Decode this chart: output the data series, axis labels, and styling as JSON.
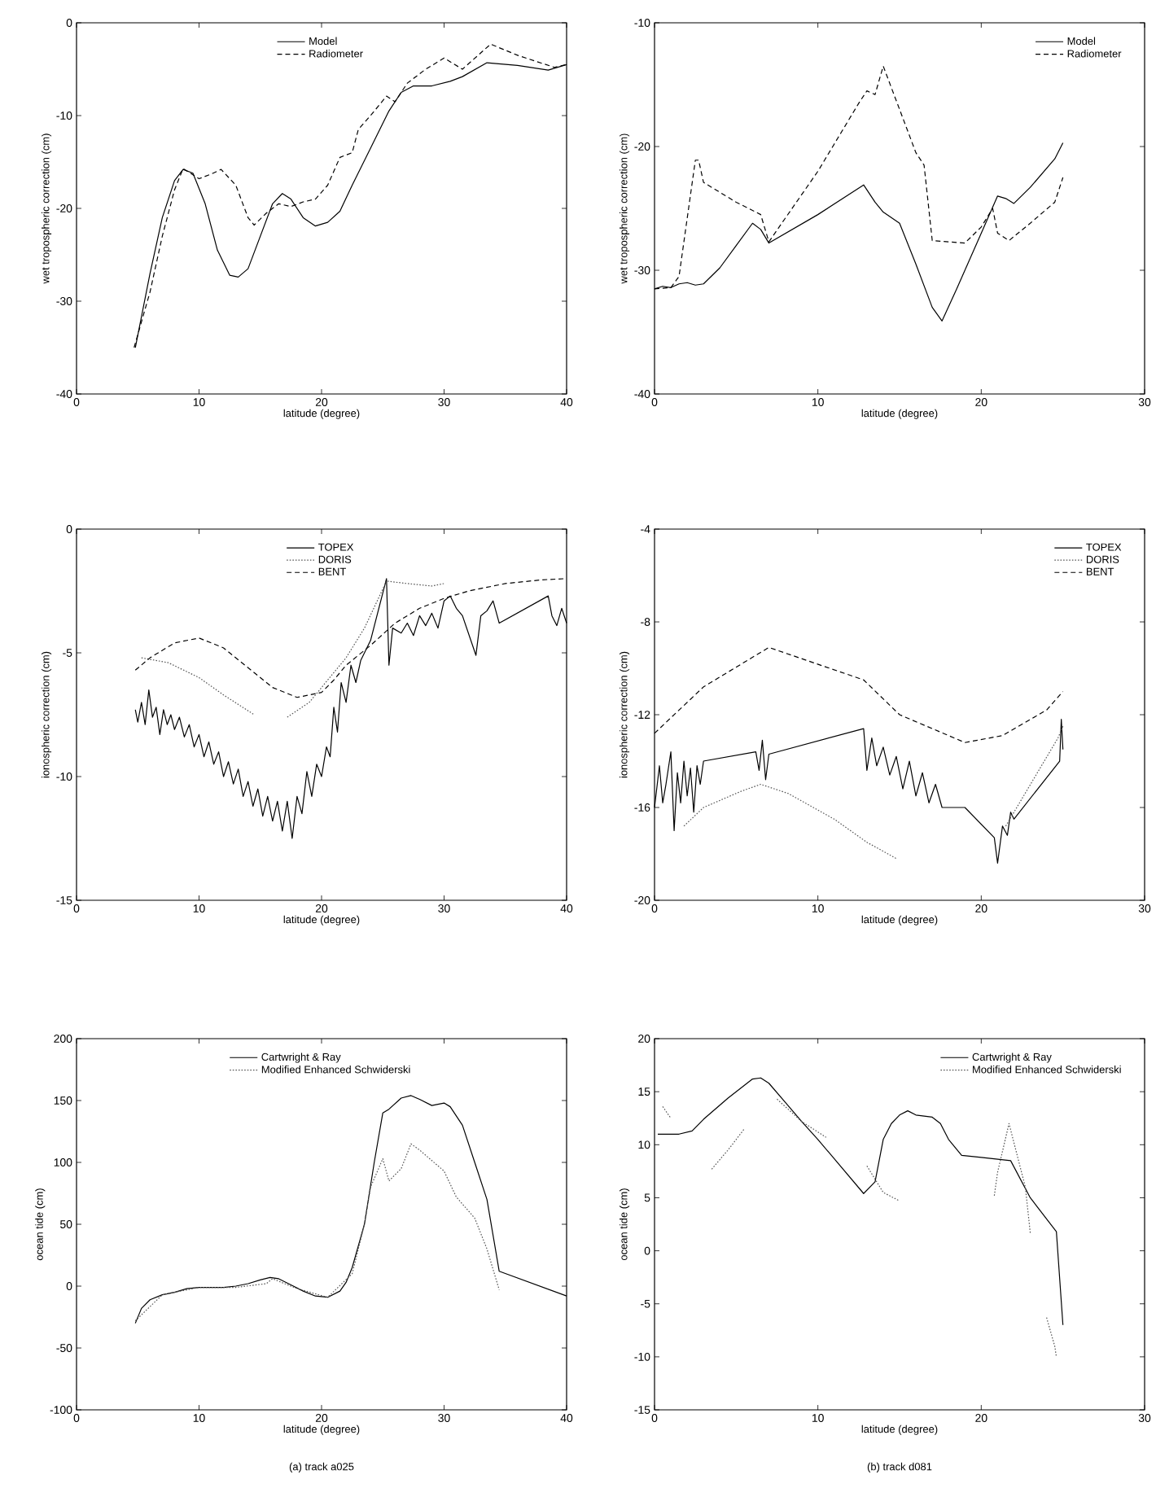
{
  "chart_data": [
    {
      "type": "line",
      "xlabel": "latitude (degree)",
      "ylabel": "wet tropospheric correction (cm)",
      "xlim": [
        0,
        40
      ],
      "ylim": [
        -40,
        0
      ],
      "xticks": [
        0,
        10,
        20,
        30,
        40
      ],
      "yticks": [
        -40,
        -30,
        -20,
        -10,
        0
      ],
      "legend": "top",
      "marker": "none",
      "series": [
        {
          "name": "Model",
          "color": "#000000",
          "line_style": "solid",
          "x": [
            4.8,
            6,
            7,
            8,
            8.7,
            9.5,
            10.5,
            11.5,
            12.5,
            13.2,
            14,
            15,
            16,
            16.8,
            17.5,
            18.5,
            19.5,
            20.5,
            21.5,
            22.5,
            24,
            25.5,
            26.5,
            27.5,
            29,
            30.5,
            31.5,
            33.5,
            36,
            38.5,
            40
          ],
          "values": [
            -35,
            -27,
            -21,
            -17,
            -15.8,
            -16.2,
            -19.5,
            -24.5,
            -27.2,
            -27.4,
            -26.5,
            -23,
            -19.5,
            -18.4,
            -19,
            -21,
            -21.9,
            -21.5,
            -20.3,
            -17.5,
            -13.5,
            -9.5,
            -7.5,
            -6.8,
            -6.8,
            -6.3,
            -5.8,
            -4.3,
            -4.6,
            -5.1,
            -4.5
          ]
        },
        {
          "name": "Radiometer",
          "color": "#000000",
          "line_style": "dashed",
          "x": [
            4.7,
            6,
            7,
            8,
            8.7,
            10,
            11,
            11.8,
            13,
            14,
            14.5,
            15.5,
            16.5,
            17.5,
            18.5,
            19.5,
            20.5,
            21.5,
            22.5,
            23,
            24,
            25.3,
            26,
            27,
            28.5,
            30,
            31.5,
            33.8,
            36,
            39,
            40
          ],
          "values": [
            -35,
            -29,
            -23,
            -18,
            -15.7,
            -16.8,
            -16.3,
            -15.8,
            -17.5,
            -21,
            -21.8,
            -20.5,
            -19.5,
            -19.8,
            -19.3,
            -19,
            -17.5,
            -14.5,
            -14,
            -11.5,
            -10,
            -7.9,
            -8.5,
            -6.5,
            -5,
            -3.8,
            -5,
            -2.3,
            -3.5,
            -4.8,
            -4.5
          ]
        }
      ]
    },
    {
      "type": "line",
      "xlabel": "latitude (degree)",
      "ylabel": "wet tropospheric correction (cm)",
      "xlim": [
        0,
        30
      ],
      "ylim": [
        -40,
        -10
      ],
      "xticks": [
        0,
        10,
        20,
        30
      ],
      "yticks": [
        -40,
        -30,
        -20,
        -10
      ],
      "legend": "top right",
      "marker": "none",
      "series": [
        {
          "name": "Model",
          "color": "#000000",
          "line_style": "solid",
          "x": [
            0,
            0.5,
            1,
            1.5,
            2,
            2.5,
            3,
            4,
            5,
            6,
            6.5,
            7,
            10,
            12.8,
            13.5,
            14,
            15,
            16,
            17,
            17.6,
            18.5,
            20,
            21,
            21.5,
            22,
            23,
            24.5,
            25
          ],
          "values": [
            -31.5,
            -31.3,
            -31.4,
            -31.1,
            -31,
            -31.2,
            -31.1,
            -29.8,
            -28,
            -26.2,
            -26.7,
            -27.8,
            -25.5,
            -23.1,
            -24.5,
            -25.3,
            -26.2,
            -29.5,
            -33,
            -34.1,
            -31.5,
            -27,
            -24,
            -24.2,
            -24.6,
            -23.3,
            -21,
            -19.7
          ]
        },
        {
          "name": "Radiometer",
          "color": "#000000",
          "line_style": "dashed",
          "x": [
            0,
            1,
            1.5,
            2.5,
            2.7,
            3,
            5,
            6.5,
            7,
            10,
            12.5,
            13,
            13.5,
            14,
            15,
            16,
            16.5,
            17,
            19,
            20,
            20.7,
            21,
            21.7,
            23,
            24.5,
            25
          ],
          "values": [
            -31.5,
            -31.4,
            -30.5,
            -21.1,
            -21.1,
            -22.9,
            -24.5,
            -25.5,
            -27.7,
            -22,
            -16.5,
            -15.5,
            -15.8,
            -13.5,
            -17,
            -20.5,
            -21.5,
            -27.6,
            -27.8,
            -26.5,
            -25,
            -27,
            -27.6,
            -26.2,
            -24.5,
            -22.5
          ]
        }
      ]
    },
    {
      "type": "line",
      "xlabel": "latitude (degree)",
      "ylabel": "ionospheric correction (cm)",
      "xlim": [
        0,
        40
      ],
      "ylim": [
        -15,
        0
      ],
      "xticks": [
        0,
        10,
        20,
        30,
        40
      ],
      "yticks": [
        -15,
        -10,
        -5,
        0
      ],
      "legend": "top",
      "marker": "none",
      "series": [
        {
          "name": "TOPEX",
          "color": "#000000",
          "line_style": "solid",
          "x": [
            4.8,
            5,
            5.3,
            5.6,
            5.9,
            6.2,
            6.5,
            6.8,
            7.1,
            7.4,
            7.7,
            8,
            8.4,
            8.8,
            9.2,
            9.6,
            10,
            10.4,
            10.8,
            11.2,
            11.6,
            12,
            12.4,
            12.8,
            13.2,
            13.6,
            14,
            14.4,
            14.8,
            15.2,
            15.6,
            16,
            16.4,
            16.8,
            17.2,
            17.6,
            18,
            18.4,
            18.8,
            19.2,
            19.6,
            20,
            20.4,
            20.7,
            21,
            21.3,
            21.6,
            22,
            22.4,
            22.8,
            23.2,
            24,
            25.3,
            25.5,
            25.8,
            26.5,
            27,
            27.5,
            28,
            28.5,
            29,
            29.5,
            30,
            30.5,
            31,
            31.5,
            32.6,
            33,
            33.5,
            34,
            34.5,
            38.5,
            38.8,
            39.2,
            39.6,
            40
          ],
          "values": [
            -7.3,
            -7.8,
            -7,
            -7.9,
            -6.5,
            -7.6,
            -7.2,
            -8.3,
            -7.3,
            -7.9,
            -7.5,
            -8.1,
            -7.6,
            -8.4,
            -7.9,
            -8.8,
            -8.3,
            -9.2,
            -8.6,
            -9.5,
            -9,
            -10,
            -9.4,
            -10.3,
            -9.7,
            -10.8,
            -10.2,
            -11.2,
            -10.5,
            -11.6,
            -10.8,
            -11.8,
            -11,
            -12.2,
            -11,
            -12.5,
            -10.8,
            -11.5,
            -9.8,
            -10.8,
            -9.5,
            -10,
            -8.8,
            -9.2,
            -7.2,
            -8.2,
            -6.2,
            -7,
            -5.5,
            -6.2,
            -5.3,
            -4.5,
            -2,
            -5.5,
            -4,
            -4.2,
            -3.8,
            -4.3,
            -3.5,
            -3.9,
            -3.4,
            -4,
            -2.9,
            -2.7,
            -3.2,
            -3.5,
            -5.1,
            -3.5,
            -3.3,
            -2.9,
            -3.8,
            -2.7,
            -3.5,
            -3.9,
            -3.2,
            -3.8
          ]
        },
        {
          "name": "DORIS",
          "color": "#555555",
          "line_style": "dotted",
          "x": [
            5.3,
            7.5,
            10,
            12,
            14.5,
            16,
            17.2,
            19,
            20.5,
            22,
            23.5,
            25.3,
            27,
            29,
            30
          ],
          "values": [
            -5.2,
            -5.4,
            -6,
            -6.7,
            -7.5,
            null,
            -7.6,
            -7,
            -6.1,
            -5.2,
            -4,
            -2.1,
            -2.2,
            -2.3,
            -2.2
          ]
        },
        {
          "name": "BENT",
          "color": "#000000",
          "line_style": "dashed",
          "x": [
            4.8,
            6,
            8,
            10,
            12,
            14,
            16,
            18,
            20,
            21,
            22,
            24,
            26,
            28,
            30,
            32,
            35,
            38,
            40
          ],
          "values": [
            -5.7,
            -5.2,
            -4.6,
            -4.4,
            -4.8,
            -5.6,
            -6.4,
            -6.8,
            -6.6,
            -6.1,
            -5.5,
            -4.7,
            -3.8,
            -3.2,
            -2.8,
            -2.5,
            -2.2,
            -2.05,
            -2
          ]
        }
      ]
    },
    {
      "type": "line",
      "xlabel": "latitude (degree)",
      "ylabel": "ionospheric correction (cm)",
      "xlim": [
        0,
        30
      ],
      "ylim": [
        -20,
        -4
      ],
      "xticks": [
        0,
        10,
        20,
        30
      ],
      "yticks": [
        -20,
        -16,
        -12,
        -8,
        -4
      ],
      "legend": "top right",
      "marker": "none",
      "series": [
        {
          "name": "TOPEX",
          "color": "#000000",
          "line_style": "solid",
          "x": [
            0,
            0.3,
            0.5,
            0.7,
            1,
            1.2,
            1.4,
            1.6,
            1.8,
            2,
            2.2,
            2.4,
            2.6,
            2.8,
            3,
            6.2,
            6.4,
            6.6,
            6.8,
            7,
            12.8,
            13,
            13.3,
            13.6,
            14,
            14.4,
            14.8,
            15.2,
            15.6,
            16,
            16.4,
            16.8,
            17.2,
            17.6,
            19,
            20.8,
            21,
            21.3,
            21.6,
            21.8,
            22,
            24.8,
            24.9,
            25
          ],
          "values": [
            -16,
            -14.2,
            -15.8,
            -15,
            -13.6,
            -17,
            -14.5,
            -15.8,
            -14,
            -15.5,
            -14.3,
            -16.2,
            -14.2,
            -15,
            -14,
            -13.6,
            -14.4,
            -13.1,
            -14.8,
            -13.7,
            -12.6,
            -14.4,
            -13,
            -14.2,
            -13.4,
            -14.6,
            -13.8,
            -15.2,
            -14,
            -15.5,
            -14.5,
            -15.8,
            -15,
            -16,
            -16,
            -17.3,
            -18.4,
            -16.8,
            -17.2,
            -16.2,
            -16.5,
            -14,
            -12.2,
            -13.5
          ]
        },
        {
          "name": "DORIS",
          "color": "#555555",
          "line_style": "dotted",
          "x": [
            1.8,
            3,
            5.3,
            6.5,
            8.2,
            11,
            13,
            14.8,
            18,
            21.5,
            24.7,
            25
          ],
          "values": [
            -16.8,
            -16,
            -15.3,
            -15,
            -15.4,
            -16.5,
            -17.5,
            -18.2,
            null,
            -16.8,
            -13,
            -12.5
          ]
        },
        {
          "name": "BENT",
          "color": "#000000",
          "line_style": "dashed",
          "x": [
            0,
            3,
            7,
            12.8,
            15,
            19,
            21.3,
            24,
            25
          ],
          "values": [
            -12.8,
            -10.8,
            -9.1,
            -10.5,
            -12,
            -13.2,
            -12.9,
            -11.8,
            -11
          ]
        }
      ]
    },
    {
      "type": "line",
      "xlabel": "latitude (degree)",
      "ylabel": "ocean tide (cm)",
      "xlim": [
        0,
        40
      ],
      "ylim": [
        -100,
        200
      ],
      "xticks": [
        0,
        10,
        20,
        30,
        40
      ],
      "yticks": [
        -100,
        -50,
        0,
        50,
        100,
        150,
        200
      ],
      "legend": "top",
      "marker": "none",
      "annotations": [
        "(a) track a025"
      ],
      "series": [
        {
          "name": "Cartwright & Ray",
          "color": "#000000",
          "line_style": "solid",
          "x": [
            4.8,
            5.3,
            6,
            7,
            8,
            9,
            10,
            12,
            13,
            14,
            15,
            15.8,
            16.5,
            17.5,
            18.5,
            19.5,
            20.5,
            21.5,
            22,
            22.5,
            23.5,
            24.3,
            25,
            25.5,
            26.5,
            27.3,
            28,
            29,
            30,
            30.5,
            31.5,
            32.5,
            33.5,
            34.5,
            40
          ],
          "values": [
            -30,
            -18,
            -11,
            -7,
            -5,
            -2,
            -1,
            -1,
            0,
            2,
            5,
            7,
            6,
            1,
            -4,
            -8,
            -9,
            -4,
            3,
            15,
            50,
            100,
            140,
            143,
            152,
            154,
            151,
            146,
            148,
            145,
            130,
            100,
            70,
            12,
            -8
          ]
        },
        {
          "name": "Modified Enhanced Schwiderski",
          "color": "#555555",
          "line_style": "dotted",
          "x": [
            4.8,
            7,
            10,
            13,
            15.5,
            16,
            18,
            20.5,
            22.5,
            23.5,
            24,
            25,
            25.5,
            26.5,
            27.3,
            28,
            30,
            31,
            32.5,
            33.5,
            34.5
          ],
          "values": [
            -28,
            -7,
            -1,
            -1,
            2,
            6,
            -2,
            -9,
            10,
            50,
            80,
            103,
            85,
            95,
            115,
            110,
            93,
            72,
            55,
            30,
            -3
          ]
        }
      ]
    },
    {
      "type": "line",
      "xlabel": "latitude (degree)",
      "ylabel": "ocean tide (cm)",
      "xlim": [
        0,
        30
      ],
      "ylim": [
        -15,
        20
      ],
      "xticks": [
        0,
        10,
        20,
        30
      ],
      "yticks": [
        -15,
        -10,
        -5,
        0,
        5,
        10,
        15,
        20
      ],
      "legend": "top right",
      "marker": "none",
      "annotations": [
        "(b) track d081"
      ],
      "series": [
        {
          "name": "Cartwright & Ray",
          "color": "#000000",
          "line_style": "solid",
          "x": [
            0.2,
            1.5,
            2.3,
            3,
            4.5,
            6,
            6.5,
            7,
            8,
            9,
            10,
            12.8,
            13.5,
            14,
            14.5,
            15,
            15.5,
            16,
            17,
            17.5,
            18,
            18.8,
            20,
            21.8,
            23,
            24.6,
            25
          ],
          "values": [
            11,
            11,
            11.3,
            12.4,
            14.4,
            16.2,
            16.3,
            15.8,
            14,
            12.2,
            10.5,
            5.4,
            6.5,
            10.5,
            12,
            12.8,
            13.2,
            12.8,
            12.6,
            12,
            10.5,
            9,
            8.8,
            8.5,
            5,
            1.8,
            -7
          ]
        },
        {
          "name": "Modified Enhanced Schwiderski",
          "color": "#555555",
          "line_style": "dotted",
          "x": [
            0.5,
            1,
            2,
            3.5,
            4.5,
            5.5,
            6.5,
            7.5,
            9,
            10.5,
            12,
            13,
            14,
            15,
            18,
            20.8,
            21,
            21.7,
            22.2,
            22.7,
            23,
            23.5,
            24,
            24.5,
            24.6
          ],
          "values": [
            13.6,
            12.5,
            null,
            7.7,
            9.5,
            11.5,
            null,
            14.3,
            12.2,
            10.7,
            null,
            8,
            5.5,
            4.7,
            null,
            5.2,
            7.4,
            12,
            9,
            6,
            1.7,
            null,
            -6.3,
            -9,
            -10
          ]
        }
      ]
    }
  ]
}
